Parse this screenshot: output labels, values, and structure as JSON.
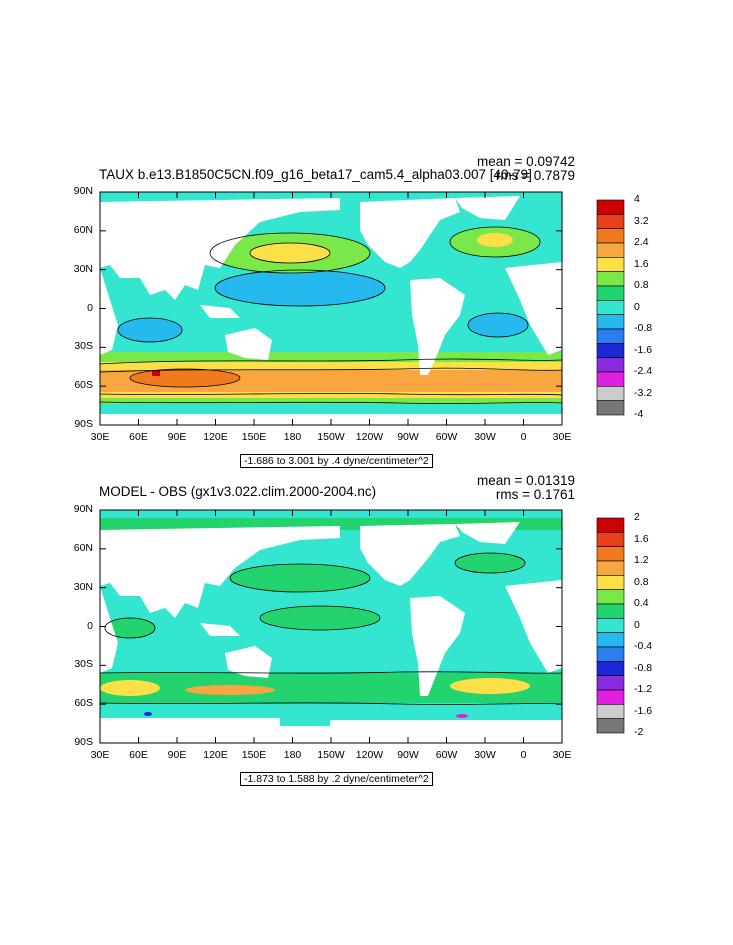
{
  "charts": [
    {
      "title": "TAUX b.e13.B1850C5CN.f09_g16_beta17_cam5.4_alpha03.007 [40-79]",
      "mean_label": "mean = 0.09742",
      "rms_label": "rms = 0.7879",
      "range_note": "-1.686 to 3.001 by .4 dyne/centimeter^2",
      "colorbar_labels": [
        "4",
        "3.2",
        "2.4",
        "1.6",
        "0.8",
        "0",
        "-0.8",
        "-1.6",
        "-2.4",
        "-3.2",
        "-4"
      ]
    },
    {
      "title": "MODEL - OBS (gx1v3.022.clim.2000-2004.nc)",
      "mean_label": "mean = 0.01319",
      "rms_label": "rms = 0.1761",
      "range_note": "-1.873 to 1.588 by .2 dyne/centimeter^2",
      "colorbar_labels": [
        "2",
        "1.6",
        "1.2",
        "0.8",
        "0.4",
        "0",
        "-0.4",
        "-0.8",
        "-1.2",
        "-1.6",
        "-2"
      ]
    }
  ],
  "axes": {
    "y_ticks": [
      "90N",
      "60N",
      "30N",
      "0",
      "30S",
      "60S",
      "90S"
    ],
    "x_ticks": [
      "30E",
      "60E",
      "90E",
      "120E",
      "150E",
      "180",
      "150W",
      "120W",
      "90W",
      "60W",
      "30W",
      "0",
      "30E"
    ]
  },
  "colors": {
    "colorbar": [
      "#cc0000",
      "#e8401a",
      "#f07a1e",
      "#f7a640",
      "#fde047",
      "#7be84a",
      "#22d36e",
      "#34e6d0",
      "#26b9ee",
      "#2a7ef0",
      "#1c28d8",
      "#8a2be2",
      "#e020e0",
      "#cccccc",
      "#777777"
    ],
    "land": "#ffffff",
    "contour": "#000000"
  },
  "chart_data": [
    {
      "type": "heatmap",
      "title": "TAUX b.e13.B1850C5CN.f09_g16_beta17_cam5.4_alpha03.007 [40-79]",
      "mean": 0.09742,
      "rms": 0.7879,
      "min": -1.686,
      "max": 3.001,
      "contour_interval": 0.4,
      "units": "dyne/centimeter^2",
      "colorbar_levels": [
        4,
        3.2,
        2.4,
        1.6,
        0.8,
        0,
        -0.8,
        -1.6,
        -2.4,
        -3.2,
        -4
      ],
      "xlim_lon": [
        30,
        390
      ],
      "ylim_lat": [
        -90,
        90
      ],
      "zonal_profile": [
        {
          "lat": 80,
          "value": -0.3
        },
        {
          "lat": 50,
          "value": 1.2
        },
        {
          "lat": 40,
          "value": 0.6
        },
        {
          "lat": 25,
          "value": -0.2
        },
        {
          "lat": 12,
          "value": -0.6
        },
        {
          "lat": 0,
          "value": -0.5
        },
        {
          "lat": -15,
          "value": -0.7
        },
        {
          "lat": -30,
          "value": 0.1
        },
        {
          "lat": -45,
          "value": 1.4
        },
        {
          "lat": -52,
          "value": 2.2
        },
        {
          "lat": -60,
          "value": 0.9
        },
        {
          "lat": -70,
          "value": -0.2
        }
      ]
    },
    {
      "type": "heatmap",
      "title": "MODEL - OBS (gx1v3.022.clim.2000-2004.nc)",
      "mean": 0.01319,
      "rms": 0.1761,
      "min": -1.873,
      "max": 1.588,
      "contour_interval": 0.2,
      "units": "dyne/centimeter^2",
      "colorbar_levels": [
        2,
        1.6,
        1.2,
        0.8,
        0.4,
        0,
        -0.4,
        -0.8,
        -1.2,
        -1.6,
        -2
      ],
      "xlim_lon": [
        30,
        390
      ],
      "ylim_lat": [
        -90,
        90
      ],
      "zonal_profile": [
        {
          "lat": 80,
          "value": 0.1
        },
        {
          "lat": 50,
          "value": 0.2
        },
        {
          "lat": 30,
          "value": 0.1
        },
        {
          "lat": 0,
          "value": 0.05
        },
        {
          "lat": -30,
          "value": -0.05
        },
        {
          "lat": -48,
          "value": 0.5
        },
        {
          "lat": -55,
          "value": 0.3
        },
        {
          "lat": -65,
          "value": -0.1
        }
      ]
    }
  ]
}
